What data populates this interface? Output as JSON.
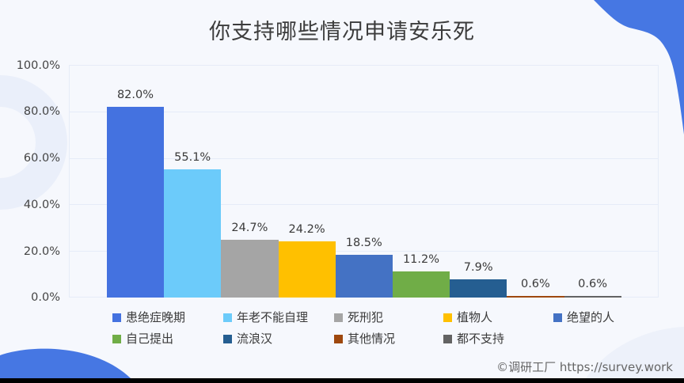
{
  "title": "你支持哪些情况申请安乐死",
  "footer": "©调研工厂 https://survey.work",
  "y_axis": {
    "ticks": [
      "0.0%",
      "20.0%",
      "40.0%",
      "60.0%",
      "80.0%",
      "100.0%"
    ]
  },
  "bars": [
    {
      "name": "患绝症晚期",
      "value": 82.0,
      "label": "82.0%",
      "color": "#4472e0"
    },
    {
      "name": "年老不能自理",
      "value": 55.1,
      "label": "55.1%",
      "color": "#6ccbfa"
    },
    {
      "name": "死刑犯",
      "value": 24.7,
      "label": "24.7%",
      "color": "#a5a5a5"
    },
    {
      "name": "植物人",
      "value": 24.2,
      "label": "24.2%",
      "color": "#ffc000"
    },
    {
      "name": "绝望的人",
      "value": 18.5,
      "label": "18.5%",
      "color": "#4472c4"
    },
    {
      "name": "自己提出",
      "value": 11.2,
      "label": "11.2%",
      "color": "#70ad47"
    },
    {
      "name": "流浪汉",
      "value": 7.9,
      "label": "7.9%",
      "color": "#255e91"
    },
    {
      "name": "其他情况",
      "value": 0.6,
      "label": "0.6%",
      "color": "#9e480e"
    },
    {
      "name": "都不支持",
      "value": 0.6,
      "label": "0.6%",
      "color": "#636363"
    }
  ],
  "legend": [
    {
      "label": "患绝症晚期",
      "color": "#4472e0"
    },
    {
      "label": "年老不能自理",
      "color": "#6ccbfa"
    },
    {
      "label": "死刑犯",
      "color": "#a5a5a5"
    },
    {
      "label": "植物人",
      "color": "#ffc000"
    },
    {
      "label": "绝望的人",
      "color": "#4472c4"
    },
    {
      "label": "自己提出",
      "color": "#70ad47"
    },
    {
      "label": "流浪汉",
      "color": "#255e91"
    },
    {
      "label": "其他情况",
      "color": "#9e480e"
    },
    {
      "label": "都不支持",
      "color": "#636363"
    }
  ],
  "decoration_color": "#4677e3",
  "chart_data": {
    "type": "bar",
    "title": "你支持哪些情况申请安乐死",
    "categories": [
      "患绝症晚期",
      "年老不能自理",
      "死刑犯",
      "植物人",
      "绝望的人",
      "自己提出",
      "流浪汉",
      "其他情况",
      "都不支持"
    ],
    "values": [
      82.0,
      55.1,
      24.7,
      24.2,
      18.5,
      11.2,
      7.9,
      0.6,
      0.6
    ],
    "value_labels": [
      "82.0%",
      "55.1%",
      "24.7%",
      "24.2%",
      "18.5%",
      "11.2%",
      "7.9%",
      "0.6%",
      "0.6%"
    ],
    "colors": [
      "#4472e0",
      "#6ccbfa",
      "#a5a5a5",
      "#ffc000",
      "#4472c4",
      "#70ad47",
      "#255e91",
      "#9e480e",
      "#636363"
    ],
    "xlabel": "",
    "ylabel": "",
    "ylim": [
      0,
      100
    ],
    "yticks": [
      "0.0%",
      "20.0%",
      "40.0%",
      "60.0%",
      "80.0%",
      "100.0%"
    ],
    "grid": true,
    "legend_position": "bottom"
  }
}
